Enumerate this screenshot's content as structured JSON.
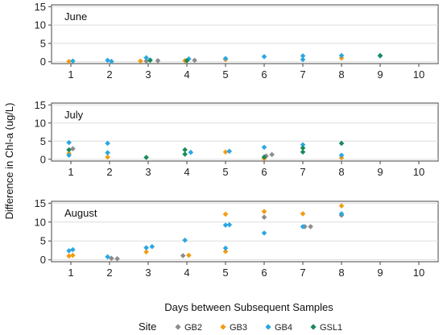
{
  "chart_data": {
    "type": "scatter",
    "ylabel": "Difference in Chl-a (ug/L)",
    "xlabel": "Days between Subsequent Samples",
    "x_ticks": [
      1,
      2,
      3,
      4,
      5,
      6,
      7,
      8,
      9,
      10
    ],
    "xlim": [
      0.5,
      10.5
    ],
    "y_ticks": [
      0,
      5,
      10,
      15
    ],
    "ylim": [
      -0.5,
      15.5
    ],
    "grid": "horizontal",
    "legend": {
      "placement": "bottom",
      "title": "Site",
      "entries": [
        {
          "name": "GB2",
          "color": "#8c8c8c"
        },
        {
          "name": "GB3",
          "color": "#f39c12"
        },
        {
          "name": "GB4",
          "color": "#2aa7e0"
        },
        {
          "name": "GSL1",
          "color": "#1a8a5a"
        }
      ]
    },
    "panels": [
      {
        "label": "June",
        "series": [
          {
            "name": "GB2",
            "points": [
              [
                2.95,
                0.2
              ],
              [
                3.25,
                0.3
              ],
              [
                4.2,
                0.4
              ]
            ]
          },
          {
            "name": "GB3",
            "points": [
              [
                0.95,
                0.1
              ],
              [
                2.8,
                0.2
              ],
              [
                3.95,
                0.3
              ],
              [
                5.0,
                0.6
              ],
              [
                8.0,
                1.0
              ]
            ]
          },
          {
            "name": "GB4",
            "points": [
              [
                1.05,
                0.2
              ],
              [
                1.95,
                0.4
              ],
              [
                2.05,
                0.1
              ],
              [
                2.95,
                1.1
              ],
              [
                3.05,
                0.5
              ],
              [
                4.05,
                0.8
              ],
              [
                5.0,
                0.9
              ],
              [
                6.0,
                1.4
              ],
              [
                7.0,
                1.6
              ],
              [
                7.0,
                0.6
              ],
              [
                8.0,
                1.7
              ],
              [
                9.0,
                1.6
              ]
            ]
          },
          {
            "name": "GSL1",
            "points": [
              [
                3.05,
                0.4
              ],
              [
                4.0,
                0.3
              ],
              [
                9.0,
                1.7
              ]
            ]
          }
        ]
      },
      {
        "label": "July",
        "series": [
          {
            "name": "GB2",
            "points": [
              [
                1.05,
                2.9
              ],
              [
                6.05,
                0.9
              ],
              [
                6.2,
                1.3
              ]
            ]
          },
          {
            "name": "GB3",
            "points": [
              [
                0.95,
                1.6
              ],
              [
                1.95,
                0.6
              ],
              [
                5.0,
                2.0
              ],
              [
                6.0,
                0.2
              ],
              [
                8.0,
                0.4
              ]
            ]
          },
          {
            "name": "GB4",
            "points": [
              [
                0.95,
                4.6
              ],
              [
                0.95,
                1.1
              ],
              [
                1.95,
                4.4
              ],
              [
                1.95,
                1.8
              ],
              [
                4.1,
                1.9
              ],
              [
                5.1,
                2.2
              ],
              [
                6.0,
                3.3
              ],
              [
                7.0,
                4.0
              ],
              [
                8.0,
                1.1
              ]
            ]
          },
          {
            "name": "GSL1",
            "points": [
              [
                0.95,
                2.6
              ],
              [
                2.95,
                0.5
              ],
              [
                3.95,
                2.6
              ],
              [
                3.95,
                1.4
              ],
              [
                6.0,
                0.6
              ],
              [
                7.0,
                3.1
              ],
              [
                7.0,
                2.0
              ],
              [
                8.0,
                4.4
              ]
            ]
          }
        ]
      },
      {
        "label": "August",
        "series": [
          {
            "name": "GB2",
            "points": [
              [
                2.05,
                0.4
              ],
              [
                2.2,
                0.3
              ],
              [
                3.9,
                1.1
              ],
              [
                6.0,
                11.3
              ],
              [
                7.05,
                8.8
              ],
              [
                7.2,
                8.8
              ],
              [
                8.0,
                11.8
              ]
            ]
          },
          {
            "name": "GB3",
            "points": [
              [
                0.95,
                1.0
              ],
              [
                1.05,
                1.2
              ],
              [
                2.95,
                2.1
              ],
              [
                4.05,
                1.2
              ],
              [
                5.0,
                12.1
              ],
              [
                5.0,
                2.2
              ],
              [
                6.0,
                12.8
              ],
              [
                7.0,
                12.2
              ],
              [
                8.0,
                14.3
              ]
            ]
          },
          {
            "name": "GB4",
            "points": [
              [
                0.95,
                2.4
              ],
              [
                1.05,
                2.7
              ],
              [
                1.95,
                0.8
              ],
              [
                2.95,
                3.2
              ],
              [
                3.1,
                3.5
              ],
              [
                3.95,
                5.2
              ],
              [
                5.0,
                9.2
              ],
              [
                5.1,
                9.3
              ],
              [
                5.0,
                3.1
              ],
              [
                6.0,
                7.1
              ],
              [
                7.0,
                8.8
              ],
              [
                8.0,
                12.2
              ]
            ]
          },
          {
            "name": "GSL1",
            "points": []
          }
        ]
      }
    ]
  }
}
